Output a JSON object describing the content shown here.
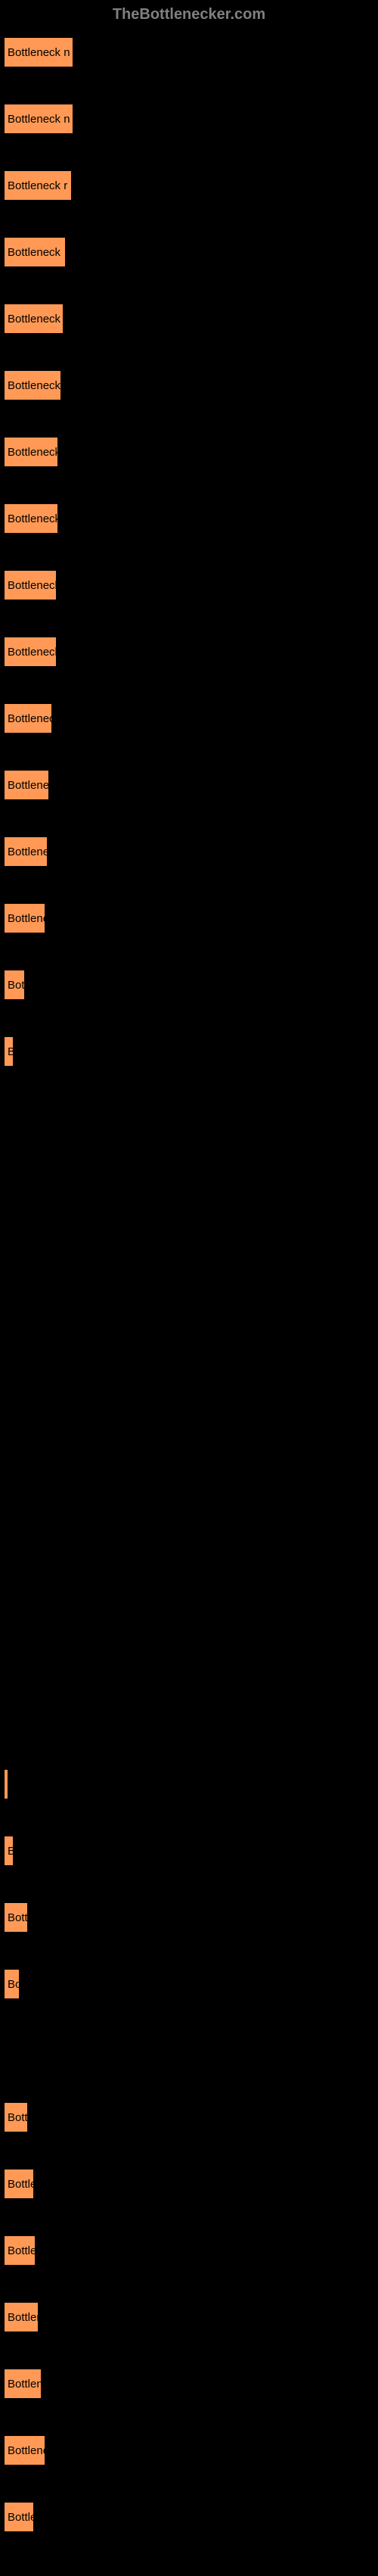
{
  "header": "TheBottlenecker.com",
  "chart": {
    "type": "bar",
    "bar_color": "#ff9955",
    "background_color": "#000000",
    "text_color": "#000000",
    "max_width": 92,
    "bars": [
      {
        "label": "Bottleneck n",
        "width": 92
      },
      {
        "label": "Bottleneck n",
        "width": 92
      },
      {
        "label": "Bottleneck r",
        "width": 90
      },
      {
        "label": "Bottleneck",
        "width": 82
      },
      {
        "label": "Bottleneck",
        "width": 79
      },
      {
        "label": "Bottleneck",
        "width": 76
      },
      {
        "label": "Bottleneck",
        "width": 72
      },
      {
        "label": "Bottleneck",
        "width": 72
      },
      {
        "label": "Bottleneck",
        "width": 70
      },
      {
        "label": "Bottleneck",
        "width": 70
      },
      {
        "label": "Bottlenec",
        "width": 64
      },
      {
        "label": "Bottlene",
        "width": 60
      },
      {
        "label": "Bottlene",
        "width": 58
      },
      {
        "label": "Bottlene",
        "width": 55
      },
      {
        "label": "Bot",
        "width": 28
      },
      {
        "label": "B",
        "width": 13
      },
      {
        "label": "",
        "width": 0
      },
      {
        "label": "",
        "width": 0
      },
      {
        "label": "",
        "width": 0
      },
      {
        "label": "",
        "width": 0
      },
      {
        "label": "",
        "width": 0
      },
      {
        "label": "",
        "width": 0
      },
      {
        "label": "",
        "width": 0
      },
      {
        "label": "",
        "width": 0
      },
      {
        "label": "",
        "width": 0
      },
      {
        "label": "",
        "width": 0
      },
      {
        "label": "",
        "width": 4
      },
      {
        "label": "B",
        "width": 13
      },
      {
        "label": "Bott",
        "width": 32
      },
      {
        "label": "Bo",
        "width": 21
      },
      {
        "label": "",
        "width": 0
      },
      {
        "label": "Bott",
        "width": 32
      },
      {
        "label": "Bottle",
        "width": 40
      },
      {
        "label": "Bottle",
        "width": 42
      },
      {
        "label": "Bottler",
        "width": 46
      },
      {
        "label": "Bottlene",
        "width": 50
      },
      {
        "label": "Bottlene",
        "width": 55
      },
      {
        "label": "Bottle",
        "width": 40
      }
    ]
  }
}
